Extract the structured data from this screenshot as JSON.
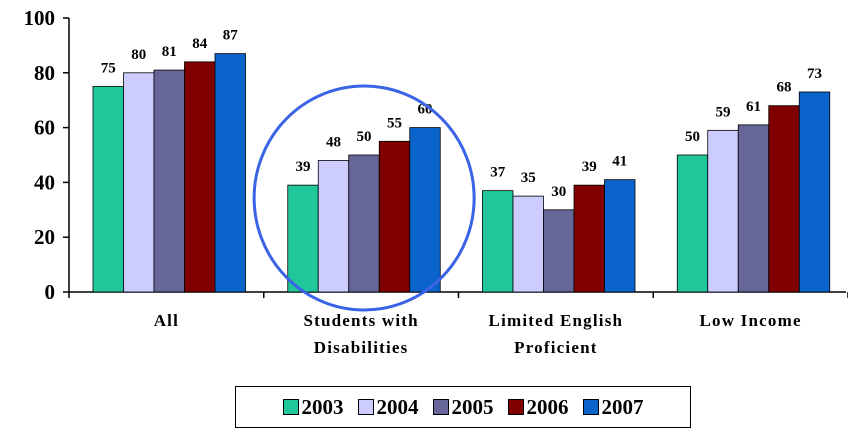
{
  "chart_data": {
    "type": "bar",
    "categories": [
      [
        "All"
      ],
      [
        "Students with",
        "Disabilities"
      ],
      [
        "Limited English",
        "Proficient"
      ],
      [
        "Low Income"
      ]
    ],
    "series": [
      {
        "name": "2003",
        "color": "#1fc79a",
        "values": [
          75,
          39,
          37,
          50
        ]
      },
      {
        "name": "2004",
        "color": "#ccccff",
        "values": [
          80,
          48,
          35,
          59
        ]
      },
      {
        "name": "2005",
        "color": "#666699",
        "values": [
          81,
          50,
          30,
          61
        ]
      },
      {
        "name": "2006",
        "color": "#800000",
        "values": [
          84,
          55,
          39,
          68
        ]
      },
      {
        "name": "2007",
        "color": "#0b63cc",
        "values": [
          87,
          60,
          41,
          73
        ]
      }
    ],
    "ylim": [
      0,
      100
    ],
    "yticks": [
      "0",
      "20",
      "40",
      "60",
      "80",
      "100"
    ],
    "highlight": {
      "category_index": 1,
      "shape": "circle",
      "color": "#3a63e6"
    },
    "legend_position": "bottom",
    "grid": false
  }
}
